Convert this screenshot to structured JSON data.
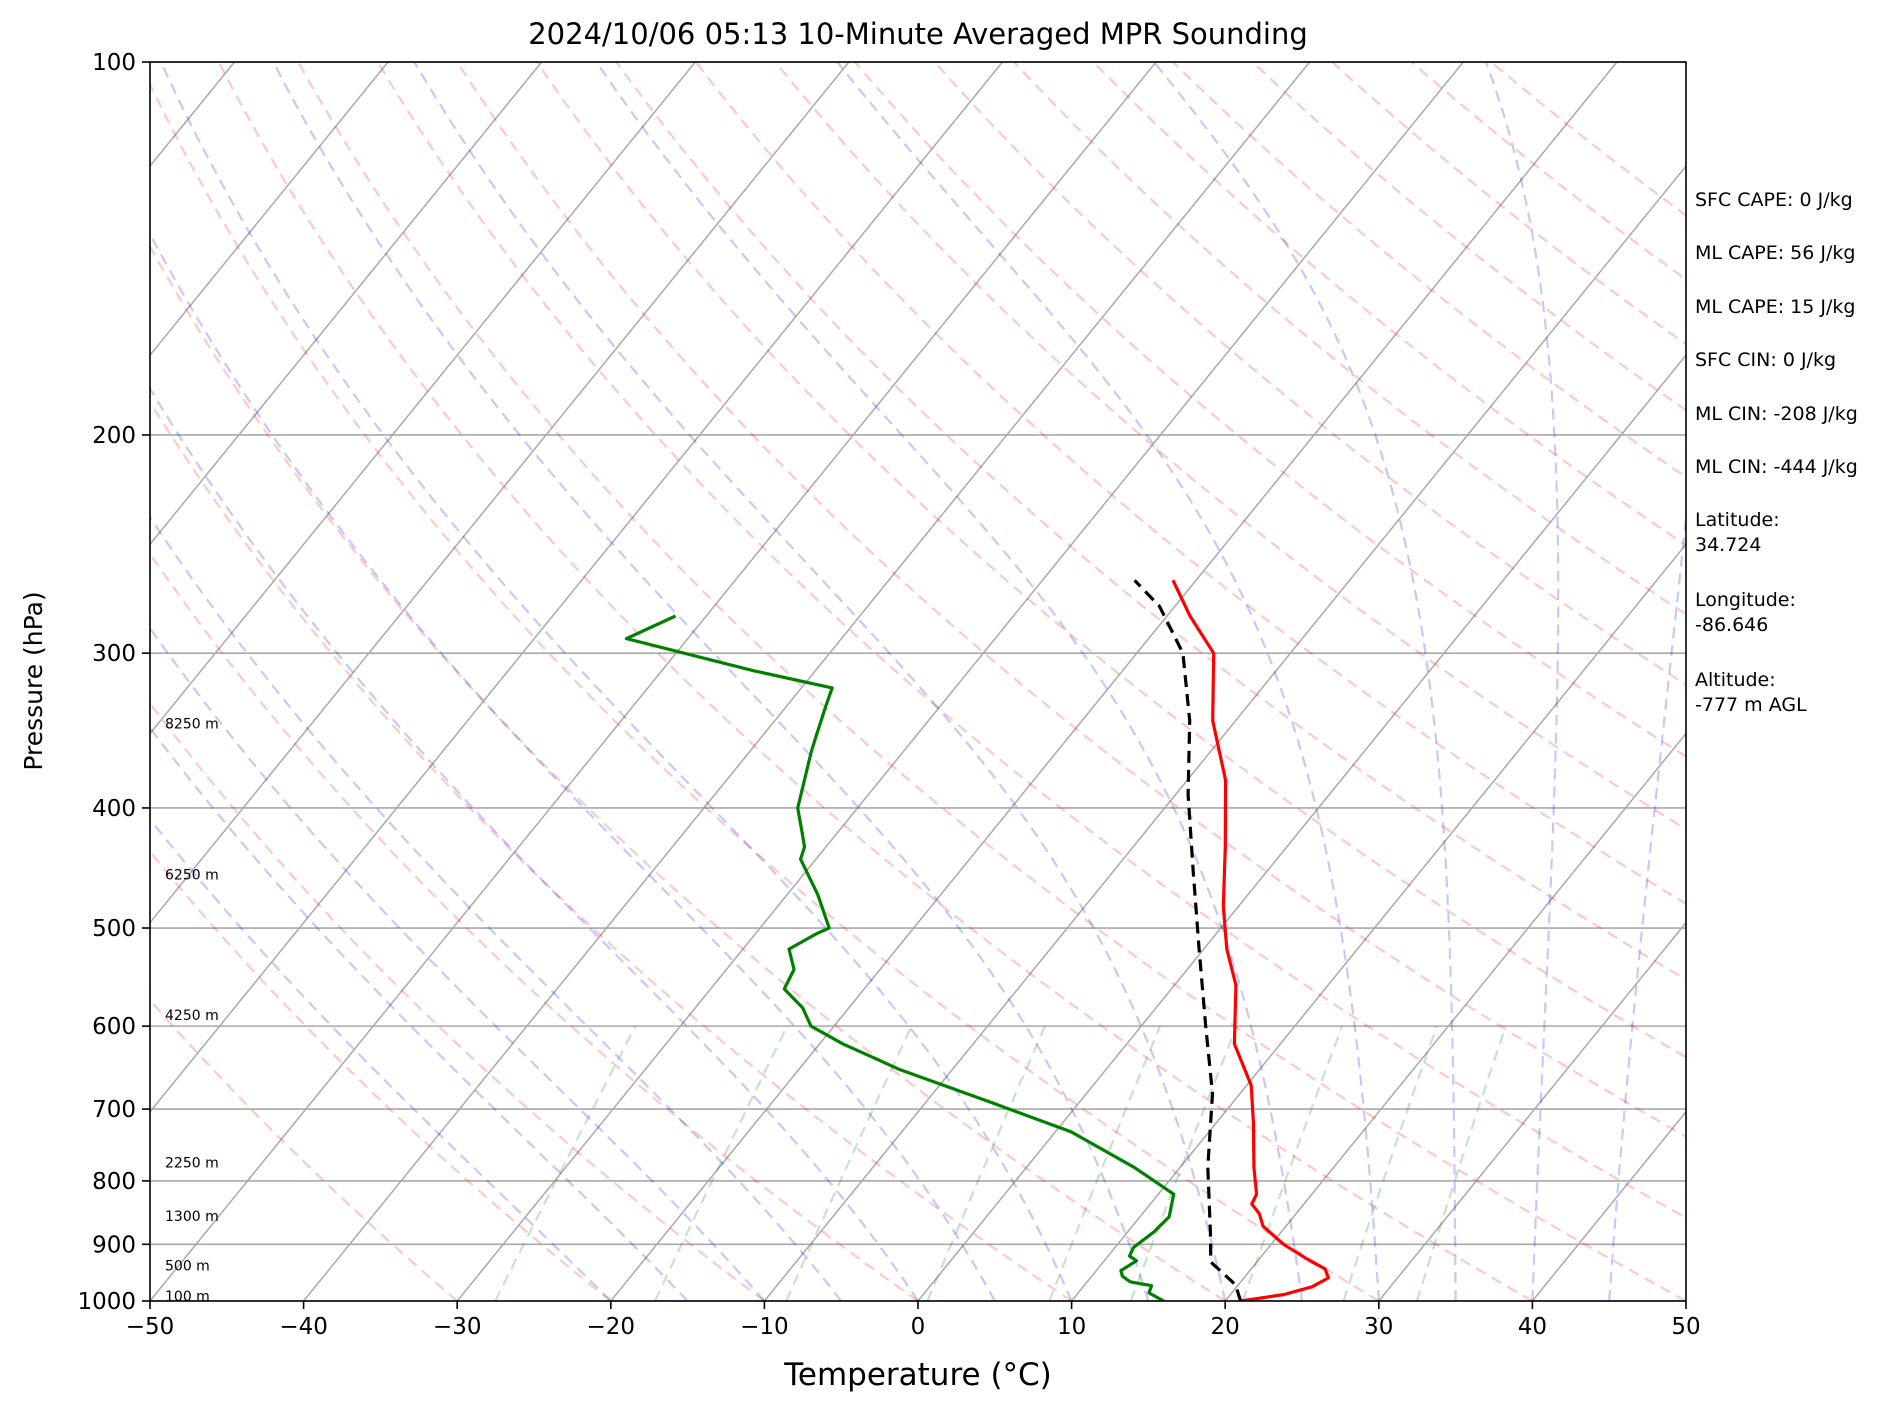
{
  "chart_data": {
    "type": "line",
    "title": "2024/10/06 05:13 10-Minute Averaged MPR Sounding",
    "xlabel": "Temperature (°C)",
    "ylabel": "Pressure (hPa)",
    "xlim": [
      -50,
      50
    ],
    "ylim": [
      1000,
      100
    ],
    "y_scale": "log",
    "skew": true,
    "grid": true,
    "x_ticks": [
      -50,
      -40,
      -30,
      -20,
      -10,
      0,
      10,
      20,
      30,
      40,
      50
    ],
    "x_tick_labels": [
      "−50",
      "−40",
      "−30",
      "−20",
      "−10",
      "0",
      "10",
      "20",
      "30",
      "40",
      "50"
    ],
    "y_ticks": [
      1000,
      900,
      800,
      700,
      600,
      500,
      400,
      300,
      200,
      100
    ],
    "y_tick_labels": [
      "1000",
      "900",
      "800",
      "700",
      "600",
      "500",
      "400",
      "300",
      "200",
      "100"
    ],
    "height_labels": [
      {
        "pressure": 1000,
        "label": "100 m"
      },
      {
        "pressure": 945,
        "label": "500 m"
      },
      {
        "pressure": 862,
        "label": "1300 m"
      },
      {
        "pressure": 780,
        "label": "2250 m"
      },
      {
        "pressure": 593,
        "label": "4250 m"
      },
      {
        "pressure": 457,
        "label": "6250 m"
      },
      {
        "pressure": 345,
        "label": "8250 m"
      }
    ],
    "series": [
      {
        "color": "#ff0000",
        "style": "solid",
        "x": [
          21.0,
          23.5,
          24.9,
          25.5,
          24.8,
          23.3,
          20.8,
          18.5,
          17.6,
          16.6,
          16.4,
          14.8,
          12.5,
          10.3,
          7.0,
          4.0,
          1.5,
          -1.0,
          -4.0,
          -7.5,
          -11.5,
          -15.0,
          -18.5,
          -21.5
        ],
        "y": [
          1000,
          988,
          974,
          958,
          942,
          927,
          900,
          870,
          850,
          835,
          820,
          780,
          720,
          670,
          620,
          556,
          520,
          480,
          430,
          380,
          340,
          300,
          280,
          262
        ]
      },
      {
        "color": "#000000",
        "style": "dashed",
        "x": [
          21.0,
          19.8,
          17.0,
          15.4,
          11.8,
          8.2,
          4.2,
          -0.3,
          -4.8,
          -9.2,
          -13.0,
          -17.0,
          -21.0,
          -24.0
        ],
        "y": [
          1000,
          970,
          930,
          880,
          780,
          680,
          600,
          520,
          450,
          390,
          340,
          300,
          275,
          262
        ]
      },
      {
        "color": "#008000",
        "style": "solid",
        "x": [
          16.0,
          14.6,
          14.4,
          12.8,
          12.0,
          11.6,
          12.1,
          11.4,
          11.2,
          11.7,
          11.9,
          11.0,
          7.0,
          1.0,
          -6.0,
          -13.5,
          -18.5,
          -21.5,
          -23.0,
          -25.2,
          -25.6,
          -27.0,
          -26.0,
          -25.5,
          -28.0,
          -31.0,
          -31.4,
          -32.2,
          -33.9,
          -36.0,
          -36.5,
          -37.5,
          -38.0,
          -44.0,
          -54.0,
          -52.0
        ],
        "y": [
          1000,
          985,
          972,
          965,
          955,
          945,
          928,
          920,
          905,
          880,
          855,
          820,
          780,
          730,
          690,
          650,
          620,
          600,
          580,
          560,
          540,
          520,
          505,
          500,
          470,
          440,
          430,
          420,
          400,
          360,
          350,
          330,
          320,
          310,
          292,
          280
        ]
      }
    ],
    "annotations": [
      "SFC CAPE: 0 J/kg",
      "ML CAPE: 56 J/kg",
      "ML CAPE: 15 J/kg",
      "SFC CIN: 0 J/kg",
      "ML CIN: -208 J/kg",
      "ML CIN: -444 J/kg",
      "Latitude:\n34.724",
      "Longitude:\n-86.646",
      "Altitude:\n-777 m AGL"
    ]
  }
}
